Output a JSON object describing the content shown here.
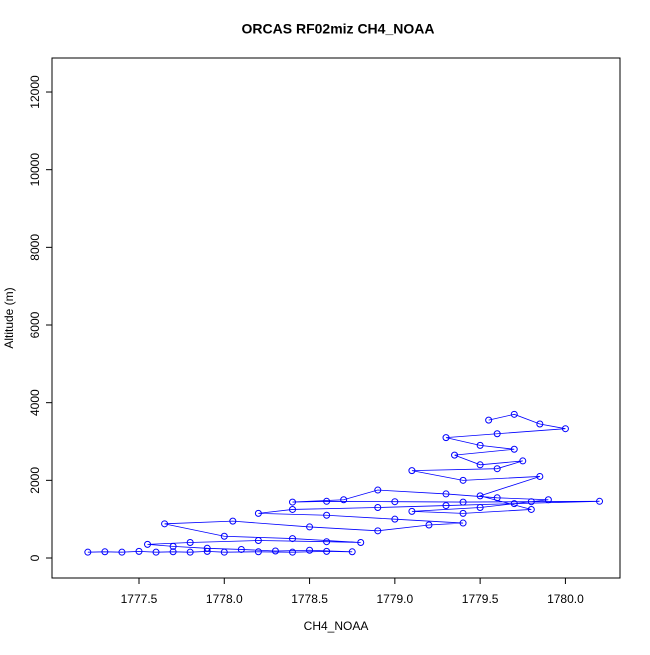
{
  "chart_data": {
    "type": "line",
    "title": "ORCAS RF02miz CH4_NOAA",
    "xlabel": "CH4_NOAA",
    "ylabel": "Altitude (m)",
    "markers": true,
    "grid": false,
    "xlim": [
      1776.99,
      1780.32
    ],
    "ylim": [
      -515,
      12876
    ],
    "xticks": [
      1777.5,
      {
        "value": 1778,
        "label": "1778.0"
      },
      1778.5,
      {
        "value": 1779,
        "label": "1779.0"
      },
      1779.5,
      {
        "value": 1780,
        "label": "1780.0"
      }
    ],
    "yticks": [
      0,
      2000,
      4000,
      6000,
      8000,
      10000,
      12000
    ],
    "series": [
      {
        "color": "#0000ff",
        "x": [
          1777.2,
          1777.3,
          1777.4,
          1777.5,
          1777.6,
          1777.7,
          1777.8,
          1777.9,
          1778.0,
          1778.2,
          1778.4,
          1778.6,
          1778.75,
          1778.5,
          1778.3,
          1778.1,
          1777.9,
          1777.7,
          1777.55,
          1777.8,
          1778.2,
          1778.6,
          1778.8,
          1778.4,
          1778.0,
          1777.65,
          1778.05,
          1778.5,
          1778.9,
          1779.2,
          1779.4,
          1779.0,
          1778.6,
          1778.2,
          1778.4,
          1778.9,
          1779.3,
          1779.7,
          1780.2,
          1779.8,
          1779.4,
          1779.0,
          1778.6,
          1778.4,
          1778.7,
          1778.9,
          1779.3,
          1779.6,
          1779.9,
          1779.5,
          1779.1,
          1779.4,
          1779.8,
          1779.5,
          1779.85,
          1779.4,
          1779.1,
          1779.6,
          1779.75,
          1779.5,
          1779.35,
          1779.7,
          1779.5,
          1779.3,
          1779.6,
          1780.0,
          1779.85,
          1779.7,
          1779.55
        ],
        "y": [
          150,
          160,
          150,
          170,
          150,
          160,
          150,
          170,
          150,
          160,
          150,
          170,
          160,
          200,
          180,
          220,
          250,
          300,
          350,
          400,
          450,
          420,
          400,
          500,
          560,
          880,
          950,
          800,
          700,
          850,
          900,
          1000,
          1100,
          1150,
          1250,
          1300,
          1350,
          1400,
          1460,
          1450,
          1440,
          1450,
          1460,
          1440,
          1500,
          1750,
          1650,
          1550,
          1500,
          1300,
          1200,
          1150,
          1250,
          1600,
          2100,
          2000,
          2250,
          2300,
          2500,
          2400,
          2650,
          2800,
          2900,
          3100,
          3200,
          3330,
          3450,
          3700,
          3550
        ]
      }
    ]
  }
}
